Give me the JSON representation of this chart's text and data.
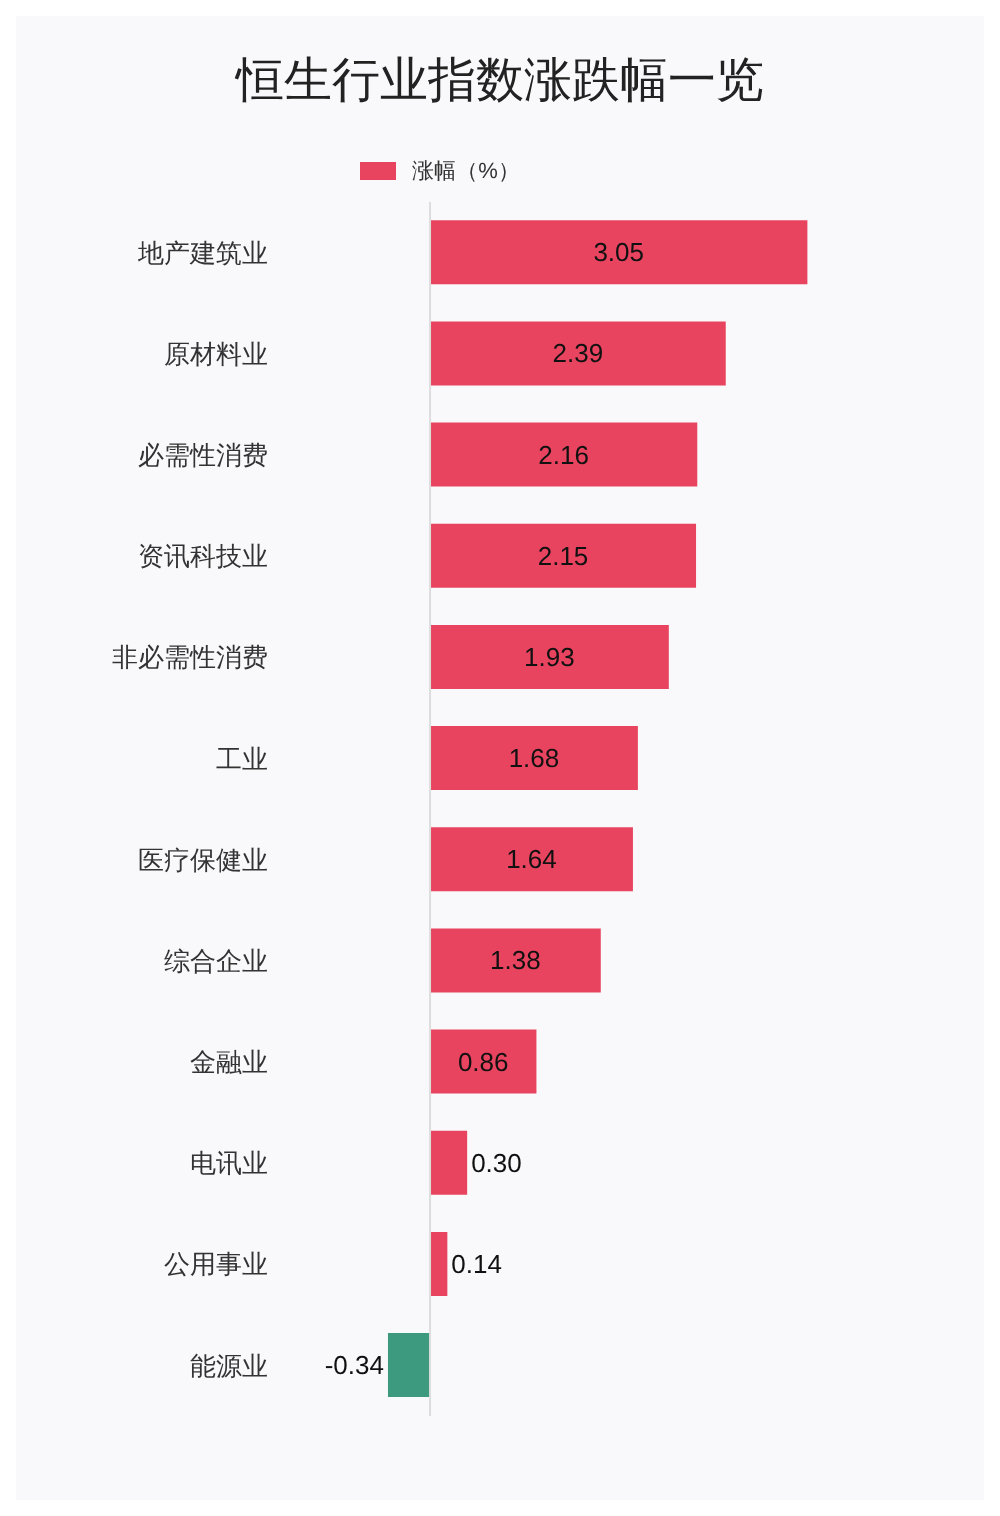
{
  "chart_data": {
    "type": "bar",
    "orientation": "horizontal",
    "title": "恒生行业指数涨跌幅一览",
    "categories": [
      "地产建筑业",
      "原材料业",
      "必需性消费",
      "资讯科技业",
      "非必需性消费",
      "工业",
      "医疗保健业",
      "综合企业",
      "金融业",
      "电讯业",
      "公用事业",
      "能源业"
    ],
    "series": [
      {
        "name": "涨幅（%）",
        "colors": [
          "#e8445f",
          "#e8445f",
          "#e8445f",
          "#e8445f",
          "#e8445f",
          "#e8445f",
          "#e8445f",
          "#e8445f",
          "#e8445f",
          "#e8445f",
          "#e8445f",
          "#3e9a7e"
        ],
        "values": [
          3.05,
          2.39,
          2.16,
          2.15,
          1.93,
          1.68,
          1.64,
          1.38,
          0.86,
          0.3,
          0.14,
          -0.34
        ],
        "value_labels": [
          "3.05",
          "2.39",
          "2.16",
          "2.15",
          "1.93",
          "1.68",
          "1.64",
          "1.38",
          "0.86",
          "0.30",
          "0.14",
          "-0.34"
        ]
      }
    ],
    "tick_labels": "y",
    "legend": "top"
  }
}
